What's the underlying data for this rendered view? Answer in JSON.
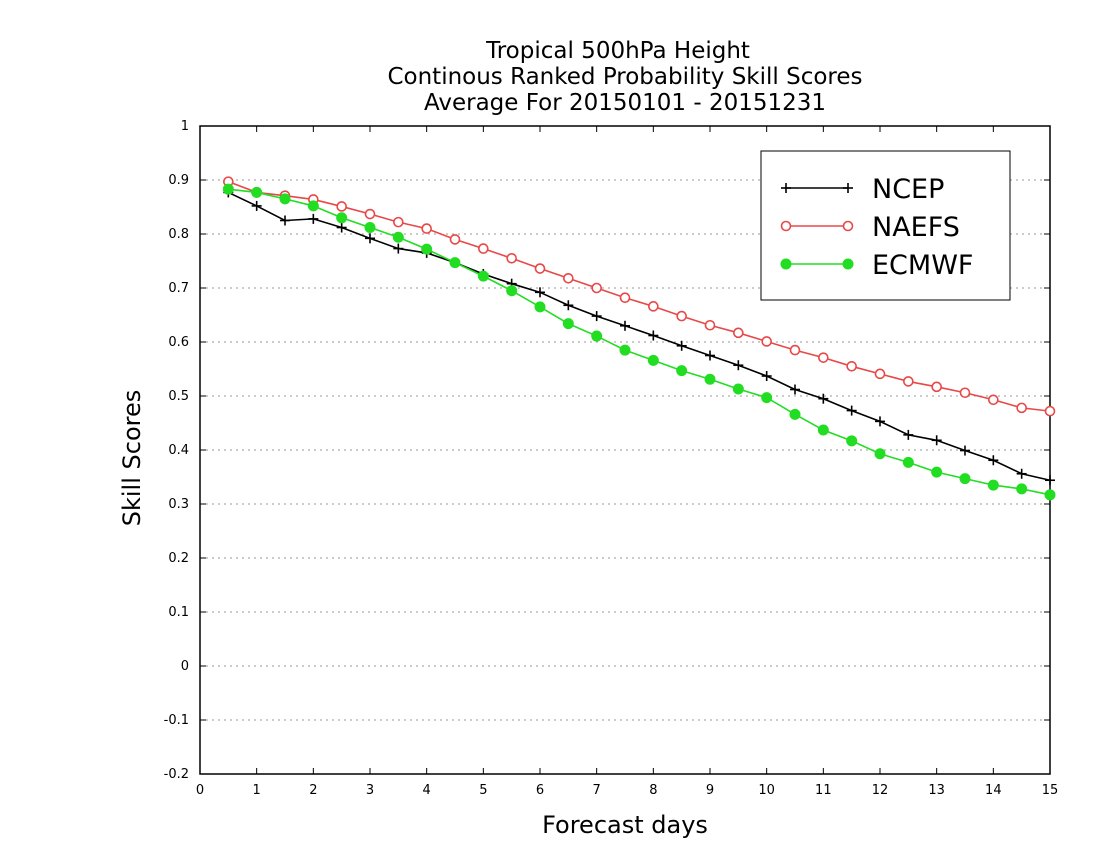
{
  "chart_data": {
    "type": "line",
    "title": [
      "Tropical 500hPa Height",
      "Continous Ranked Probability Skill Scores",
      "Average For 20150101 - 20151231"
    ],
    "xlabel": "Forecast days",
    "ylabel": "Skill Scores",
    "xlim": [
      0,
      15
    ],
    "ylim": [
      -0.2,
      1
    ],
    "xticks": [
      "0",
      "1",
      "2",
      "3",
      "4",
      "5",
      "6",
      "7",
      "8",
      "9",
      "10",
      "11",
      "12",
      "13",
      "14",
      "15"
    ],
    "yticks": [
      "-0.2",
      "-0.1",
      "0",
      "0.1",
      "0.2",
      "0.3",
      "0.4",
      "0.5",
      "0.6",
      "0.7",
      "0.8",
      "0.9",
      "1"
    ],
    "grid": "horizontal dotted",
    "legend_position": "top-right",
    "x": [
      0.5,
      1,
      1.5,
      2,
      2.5,
      3,
      3.5,
      4,
      4.5,
      5,
      5.5,
      6,
      6.5,
      7,
      7.5,
      8,
      8.5,
      9,
      9.5,
      10,
      10.5,
      11,
      11.5,
      12,
      12.5,
      13,
      13.5,
      14,
      14.5,
      15
    ],
    "series": [
      {
        "name": "NCEP",
        "color": "#000000",
        "marker": "plus",
        "values": [
          0.877,
          0.852,
          0.825,
          0.828,
          0.812,
          0.792,
          0.773,
          0.765,
          0.747,
          0.726,
          0.708,
          0.692,
          0.668,
          0.648,
          0.63,
          0.612,
          0.593,
          0.575,
          0.557,
          0.537,
          0.512,
          0.495,
          0.473,
          0.453,
          0.428,
          0.418,
          0.399,
          0.381,
          0.356,
          0.344
        ]
      },
      {
        "name": "NAEFS",
        "color": "#e84848",
        "marker": "open-circle",
        "values": [
          0.897,
          0.877,
          0.871,
          0.864,
          0.851,
          0.837,
          0.822,
          0.81,
          0.79,
          0.773,
          0.755,
          0.736,
          0.718,
          0.7,
          0.682,
          0.666,
          0.648,
          0.631,
          0.617,
          0.601,
          0.585,
          0.571,
          0.555,
          0.541,
          0.527,
          0.517,
          0.506,
          0.493,
          0.478,
          0.472
        ]
      },
      {
        "name": "ECMWF",
        "color": "#22dd22",
        "marker": "filled-circle",
        "values": [
          0.883,
          0.877,
          0.865,
          0.852,
          0.83,
          0.812,
          0.794,
          0.772,
          0.747,
          0.722,
          0.695,
          0.665,
          0.634,
          0.611,
          0.585,
          0.566,
          0.547,
          0.531,
          0.513,
          0.497,
          0.466,
          0.437,
          0.417,
          0.393,
          0.377,
          0.359,
          0.347,
          0.335,
          0.328,
          0.317
        ]
      }
    ]
  }
}
